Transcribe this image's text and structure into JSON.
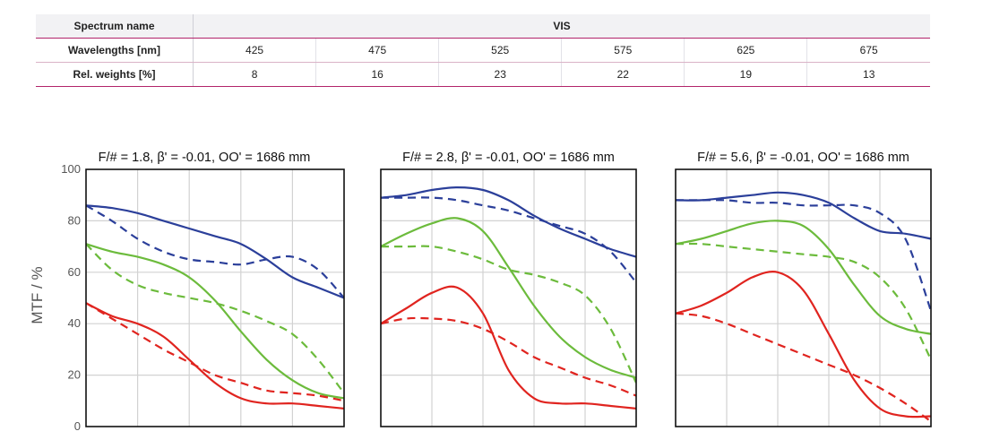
{
  "spectrum_table": {
    "header_label": "Spectrum name",
    "spectrum_name": "VIS",
    "wavelength_label": "Wavelengths [nm]",
    "wavelengths": [
      "425",
      "475",
      "525",
      "575",
      "625",
      "675"
    ],
    "weight_label": "Rel. weights [%]",
    "weights": [
      "8",
      "16",
      "23",
      "22",
      "19",
      "13"
    ]
  },
  "colors": {
    "blue": "#2b3f9a",
    "green": "#6cbb3c",
    "red": "#e0241f",
    "grid": "#d2d2d2",
    "table_accent": "#b2246a"
  },
  "chart_data": [
    {
      "type": "line",
      "title": "F/# = 1.8, β' = -0.01, OO' = 1686 mm",
      "ylabel": "MTF / %",
      "xlabel": "",
      "ylim": [
        0,
        100
      ],
      "xlim": [
        0,
        1
      ],
      "yticks": [
        0,
        20,
        40,
        60,
        80,
        100
      ],
      "grid": true,
      "series": [
        {
          "color": "blue",
          "dashed": false,
          "x": [
            0,
            0.1,
            0.2,
            0.3,
            0.4,
            0.5,
            0.6,
            0.7,
            0.8,
            0.9,
            1.0
          ],
          "y": [
            86,
            85,
            83,
            80,
            77,
            74,
            71,
            65,
            58,
            54,
            50
          ]
        },
        {
          "color": "blue",
          "dashed": true,
          "x": [
            0,
            0.1,
            0.2,
            0.3,
            0.4,
            0.5,
            0.6,
            0.7,
            0.8,
            0.9,
            1.0
          ],
          "y": [
            86,
            80,
            73,
            68,
            65,
            64,
            63,
            65,
            66,
            61,
            50
          ]
        },
        {
          "color": "green",
          "dashed": false,
          "x": [
            0,
            0.1,
            0.2,
            0.3,
            0.4,
            0.5,
            0.6,
            0.7,
            0.8,
            0.9,
            1.0
          ],
          "y": [
            71,
            68,
            66,
            63,
            58,
            49,
            37,
            26,
            18,
            13,
            11
          ]
        },
        {
          "color": "green",
          "dashed": true,
          "x": [
            0,
            0.1,
            0.2,
            0.3,
            0.4,
            0.5,
            0.6,
            0.7,
            0.8,
            0.9,
            1.0
          ],
          "y": [
            71,
            61,
            55,
            52,
            50,
            48,
            45,
            41,
            36,
            26,
            13
          ]
        },
        {
          "color": "red",
          "dashed": false,
          "x": [
            0,
            0.1,
            0.2,
            0.3,
            0.4,
            0.5,
            0.6,
            0.7,
            0.8,
            0.9,
            1.0
          ],
          "y": [
            48,
            43,
            40,
            35,
            26,
            17,
            11,
            9,
            9,
            8,
            7
          ]
        },
        {
          "color": "red",
          "dashed": true,
          "x": [
            0,
            0.1,
            0.2,
            0.3,
            0.4,
            0.5,
            0.6,
            0.7,
            0.8,
            0.9,
            1.0
          ],
          "y": [
            48,
            42,
            36,
            30,
            25,
            20,
            17,
            14,
            13,
            12,
            10
          ]
        }
      ]
    },
    {
      "type": "line",
      "title": "F/# = 2.8, β' = -0.01, OO' = 1686 mm",
      "ylabel": "",
      "xlabel": "",
      "ylim": [
        0,
        100
      ],
      "xlim": [
        0,
        1
      ],
      "yticks": [
        0,
        20,
        40,
        60,
        80,
        100
      ],
      "grid": true,
      "series": [
        {
          "color": "blue",
          "dashed": false,
          "x": [
            0,
            0.1,
            0.2,
            0.3,
            0.4,
            0.5,
            0.6,
            0.7,
            0.8,
            0.9,
            1.0
          ],
          "y": [
            89,
            90,
            92,
            93,
            92,
            88,
            82,
            77,
            73,
            69,
            66
          ]
        },
        {
          "color": "blue",
          "dashed": true,
          "x": [
            0,
            0.1,
            0.2,
            0.3,
            0.4,
            0.5,
            0.6,
            0.7,
            0.8,
            0.9,
            1.0
          ],
          "y": [
            89,
            89,
            89,
            88,
            86,
            84,
            81,
            78,
            75,
            68,
            56
          ]
        },
        {
          "color": "green",
          "dashed": false,
          "x": [
            0,
            0.1,
            0.2,
            0.3,
            0.4,
            0.5,
            0.6,
            0.7,
            0.8,
            0.9,
            1.0
          ],
          "y": [
            70,
            75,
            79,
            81,
            76,
            62,
            47,
            35,
            27,
            22,
            19
          ]
        },
        {
          "color": "green",
          "dashed": true,
          "x": [
            0,
            0.1,
            0.2,
            0.3,
            0.4,
            0.5,
            0.6,
            0.7,
            0.8,
            0.9,
            1.0
          ],
          "y": [
            70,
            70,
            70,
            68,
            65,
            61,
            59,
            56,
            51,
            38,
            17
          ]
        },
        {
          "color": "red",
          "dashed": false,
          "x": [
            0,
            0.1,
            0.2,
            0.3,
            0.4,
            0.5,
            0.6,
            0.7,
            0.8,
            0.9,
            1.0
          ],
          "y": [
            40,
            46,
            52,
            54,
            44,
            22,
            11,
            9,
            9,
            8,
            7
          ]
        },
        {
          "color": "red",
          "dashed": true,
          "x": [
            0,
            0.1,
            0.2,
            0.3,
            0.4,
            0.5,
            0.6,
            0.7,
            0.8,
            0.9,
            1.0
          ],
          "y": [
            40,
            42,
            42,
            41,
            38,
            33,
            27,
            23,
            19,
            16,
            12
          ]
        }
      ]
    },
    {
      "type": "line",
      "title": "F/# = 5.6, β' = -0.01, OO' = 1686 mm",
      "ylabel": "",
      "xlabel": "",
      "ylim": [
        0,
        100
      ],
      "xlim": [
        0,
        1
      ],
      "yticks": [
        0,
        20,
        40,
        60,
        80,
        100
      ],
      "grid": true,
      "series": [
        {
          "color": "blue",
          "dashed": false,
          "x": [
            0,
            0.1,
            0.2,
            0.3,
            0.4,
            0.5,
            0.6,
            0.7,
            0.8,
            0.9,
            1.0
          ],
          "y": [
            88,
            88,
            89,
            90,
            91,
            90,
            87,
            81,
            76,
            75,
            73
          ]
        },
        {
          "color": "blue",
          "dashed": true,
          "x": [
            0,
            0.1,
            0.2,
            0.3,
            0.4,
            0.5,
            0.6,
            0.7,
            0.8,
            0.9,
            1.0
          ],
          "y": [
            88,
            88,
            88,
            87,
            87,
            86,
            86,
            86,
            83,
            73,
            45
          ]
        },
        {
          "color": "green",
          "dashed": false,
          "x": [
            0,
            0.1,
            0.2,
            0.3,
            0.4,
            0.5,
            0.6,
            0.7,
            0.8,
            0.9,
            1.0
          ],
          "y": [
            71,
            73,
            76,
            79,
            80,
            78,
            69,
            55,
            43,
            38,
            36
          ]
        },
        {
          "color": "green",
          "dashed": true,
          "x": [
            0,
            0.1,
            0.2,
            0.3,
            0.4,
            0.5,
            0.6,
            0.7,
            0.8,
            0.9,
            1.0
          ],
          "y": [
            71,
            71,
            70,
            69,
            68,
            67,
            66,
            64,
            58,
            46,
            26
          ]
        },
        {
          "color": "red",
          "dashed": false,
          "x": [
            0,
            0.1,
            0.2,
            0.3,
            0.4,
            0.5,
            0.6,
            0.7,
            0.8,
            0.9,
            1.0
          ],
          "y": [
            44,
            47,
            52,
            58,
            60,
            53,
            36,
            18,
            7,
            4,
            4
          ]
        },
        {
          "color": "red",
          "dashed": true,
          "x": [
            0,
            0.1,
            0.2,
            0.3,
            0.4,
            0.5,
            0.6,
            0.7,
            0.8,
            0.9,
            1.0
          ],
          "y": [
            44,
            43,
            40,
            36,
            32,
            28,
            24,
            20,
            15,
            9,
            2
          ]
        }
      ]
    }
  ]
}
